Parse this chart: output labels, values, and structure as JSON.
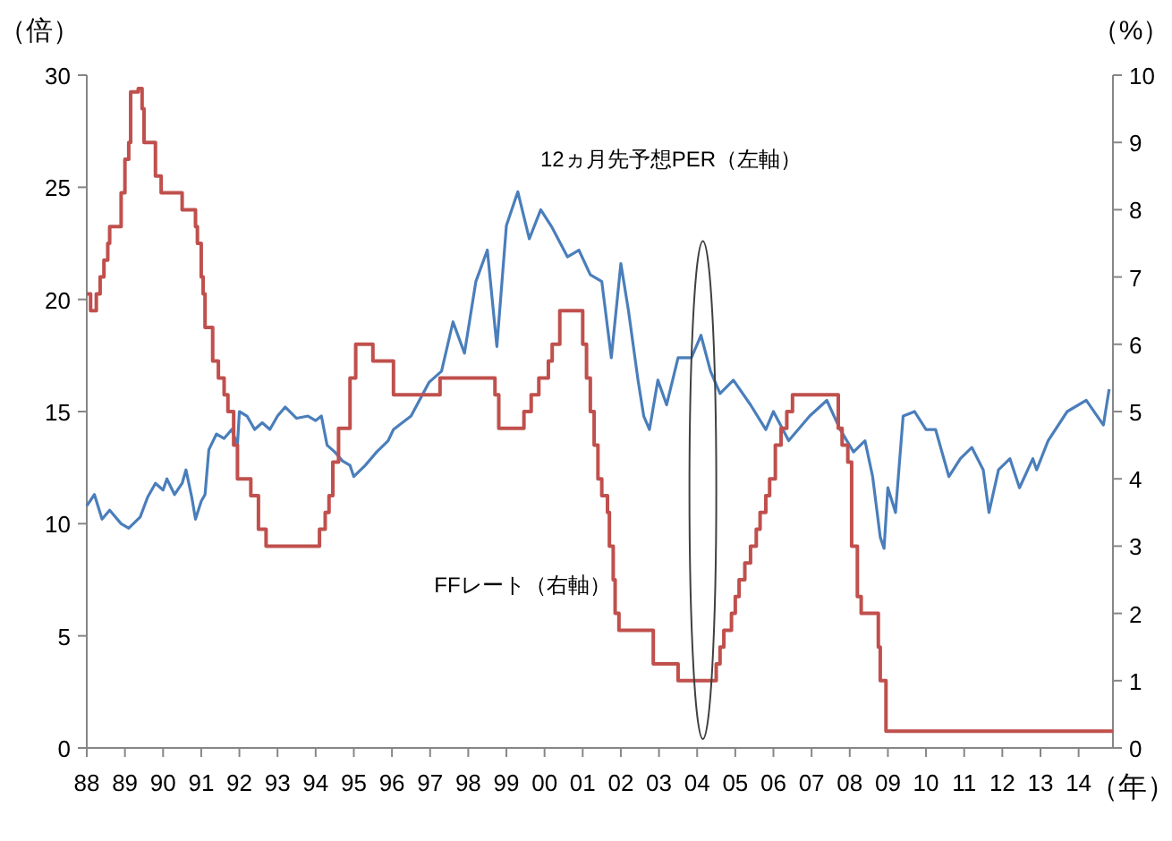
{
  "chart_data": {
    "type": "line",
    "ylabel": "（倍）",
    "y2label": "（%）",
    "xlabel": "（年）",
    "xlim": [
      1988,
      2014.9
    ],
    "xticks": [
      {
        "value": 1988,
        "label": "88"
      },
      {
        "value": 1989,
        "label": "89"
      },
      {
        "value": 1990,
        "label": "90"
      },
      {
        "value": 1991,
        "label": "91"
      },
      {
        "value": 1992,
        "label": "92"
      },
      {
        "value": 1993,
        "label": "93"
      },
      {
        "value": 1994,
        "label": "94"
      },
      {
        "value": 1995,
        "label": "95"
      },
      {
        "value": 1996,
        "label": "96"
      },
      {
        "value": 1997,
        "label": "97"
      },
      {
        "value": 1998,
        "label": "98"
      },
      {
        "value": 1999,
        "label": "99"
      },
      {
        "value": 2000,
        "label": "00"
      },
      {
        "value": 2001,
        "label": "01"
      },
      {
        "value": 2002,
        "label": "02"
      },
      {
        "value": 2003,
        "label": "03"
      },
      {
        "value": 2004,
        "label": "04"
      },
      {
        "value": 2005,
        "label": "05"
      },
      {
        "value": 2006,
        "label": "06"
      },
      {
        "value": 2007,
        "label": "07"
      },
      {
        "value": 2008,
        "label": "08"
      },
      {
        "value": 2009,
        "label": "09"
      },
      {
        "value": 2010,
        "label": "10"
      },
      {
        "value": 2011,
        "label": "11"
      },
      {
        "value": 2012,
        "label": "12"
      },
      {
        "value": 2013,
        "label": "13"
      },
      {
        "value": 2014,
        "label": "14"
      }
    ],
    "ylim": [
      0,
      30
    ],
    "yticks": [
      0,
      5,
      10,
      15,
      20,
      25,
      30
    ],
    "y2lim": [
      0,
      10
    ],
    "y2ticks": [
      0,
      1,
      2,
      3,
      4,
      5,
      6,
      7,
      8,
      9,
      10
    ],
    "grid": false,
    "series": [
      {
        "name": "12ヵ月先予想PER（左軸）",
        "color": "#4a7ebb",
        "x": [
          1988.0,
          1988.2,
          1988.4,
          1988.6,
          1988.9,
          1989.1,
          1989.4,
          1989.6,
          1989.8,
          1990.0,
          1990.1,
          1990.3,
          1990.5,
          1990.6,
          1990.75,
          1990.85,
          1991.0,
          1991.1,
          1991.2,
          1991.4,
          1991.6,
          1991.8,
          1991.95,
          1992.0,
          1992.2,
          1992.4,
          1992.6,
          1992.8,
          1993.0,
          1993.2,
          1993.5,
          1993.8,
          1994.0,
          1994.15,
          1994.3,
          1994.5,
          1994.7,
          1994.9,
          1995.0,
          1995.3,
          1995.6,
          1995.9,
          1996.04,
          1996.5,
          1996.97,
          1997.3,
          1997.6,
          1997.9,
          1998.2,
          1998.5,
          1998.75,
          1999.0,
          1999.3,
          1999.6,
          1999.9,
          2000.2,
          2000.6,
          2000.9,
          2001.2,
          2001.5,
          2001.75,
          2002.0,
          2002.2,
          2002.45,
          2002.6,
          2002.75,
          2002.97,
          2003.2,
          2003.5,
          2003.85,
          2004.1,
          2004.35,
          2004.6,
          2004.95,
          2005.4,
          2005.8,
          2006.0,
          2006.4,
          2006.95,
          2007.4,
          2007.75,
          2008.1,
          2008.4,
          2008.6,
          2008.8,
          2008.9,
          2009.0,
          2009.2,
          2009.4,
          2009.7,
          2010.0,
          2010.25,
          2010.6,
          2010.9,
          2011.2,
          2011.5,
          2011.65,
          2011.9,
          2012.2,
          2012.45,
          2012.8,
          2012.9,
          2013.2,
          2013.7,
          2014.2,
          2014.65,
          2014.8
        ],
        "values": [
          10.8,
          11.3,
          10.2,
          10.6,
          10.0,
          9.8,
          10.3,
          11.2,
          11.8,
          11.5,
          12.0,
          11.3,
          11.8,
          12.4,
          11.2,
          10.2,
          11.0,
          11.3,
          13.3,
          14.0,
          13.8,
          14.2,
          13.5,
          15.0,
          14.8,
          14.2,
          14.5,
          14.2,
          14.8,
          15.2,
          14.7,
          14.8,
          14.6,
          14.8,
          13.5,
          13.2,
          12.8,
          12.6,
          12.1,
          12.6,
          13.2,
          13.7,
          14.2,
          14.8,
          16.3,
          16.8,
          19.0,
          17.6,
          20.8,
          22.2,
          17.9,
          23.3,
          24.8,
          22.7,
          24.0,
          23.2,
          21.9,
          22.2,
          21.1,
          20.8,
          17.4,
          21.6,
          19.5,
          16.4,
          14.8,
          14.2,
          16.4,
          15.3,
          17.4,
          17.4,
          18.4,
          16.8,
          15.8,
          16.4,
          15.3,
          14.2,
          15.0,
          13.7,
          14.8,
          15.5,
          14.2,
          13.2,
          13.7,
          12.1,
          9.4,
          8.9,
          11.6,
          10.5,
          14.8,
          15.0,
          14.2,
          14.2,
          12.1,
          12.9,
          13.4,
          12.4,
          10.5,
          12.4,
          12.9,
          11.6,
          12.9,
          12.4,
          13.7,
          15.0,
          15.5,
          14.4,
          16.0
        ]
      },
      {
        "name": "FFレート（右軸）",
        "type": "step",
        "axis": "y2",
        "color": "#c0504d",
        "x": [
          1988.0,
          1988.1,
          1988.25,
          1988.35,
          1988.45,
          1988.55,
          1988.6,
          1988.9,
          1989.0,
          1989.1,
          1989.15,
          1989.35,
          1989.45,
          1989.5,
          1989.8,
          1989.95,
          1990.5,
          1990.85,
          1990.9,
          1991.0,
          1991.05,
          1991.1,
          1991.3,
          1991.45,
          1991.6,
          1991.7,
          1991.85,
          1991.95,
          1992.3,
          1992.5,
          1992.7,
          1994.1,
          1994.25,
          1994.35,
          1994.45,
          1994.6,
          1994.9,
          1995.05,
          1995.5,
          1996.04,
          1997.26,
          1998.7,
          1998.8,
          1999.46,
          1999.65,
          1999.85,
          2000.1,
          2000.2,
          2000.4,
          2001.0,
          2001.1,
          2001.2,
          2001.3,
          2001.4,
          2001.5,
          2001.65,
          2001.7,
          2001.8,
          2001.85,
          2001.95,
          2002.85,
          2003.5,
          2004.5,
          2004.6,
          2004.7,
          2004.9,
          2005.0,
          2005.1,
          2005.25,
          2005.4,
          2005.55,
          2005.65,
          2005.8,
          2005.9,
          2006.05,
          2006.2,
          2006.35,
          2006.5,
          2007.7,
          2007.8,
          2007.95,
          2008.05,
          2008.2,
          2008.3,
          2008.75,
          2008.8,
          2008.95,
          2014.9
        ],
        "values": [
          6.75,
          6.5,
          6.75,
          7.0,
          7.25,
          7.5,
          7.75,
          8.25,
          8.75,
          9.0,
          9.75,
          9.8,
          9.5,
          9.0,
          8.5,
          8.25,
          8.0,
          7.75,
          7.5,
          7.0,
          6.75,
          6.25,
          5.75,
          5.5,
          5.25,
          5.0,
          4.5,
          4.0,
          3.75,
          3.25,
          3.0,
          3.25,
          3.5,
          3.75,
          4.25,
          4.75,
          5.5,
          6.0,
          5.75,
          5.25,
          5.5,
          5.25,
          4.75,
          5.0,
          5.25,
          5.5,
          5.75,
          6.0,
          6.5,
          6.0,
          5.5,
          5.0,
          4.5,
          4.0,
          3.75,
          3.5,
          3.0,
          2.5,
          2.0,
          1.75,
          1.25,
          1.0,
          1.25,
          1.5,
          1.75,
          2.0,
          2.25,
          2.5,
          2.75,
          3.0,
          3.25,
          3.5,
          3.75,
          4.0,
          4.5,
          4.75,
          5.0,
          5.25,
          4.75,
          4.5,
          4.25,
          3.0,
          2.25,
          2.0,
          1.5,
          1.0,
          0.25,
          0.25
        ]
      }
    ]
  }
}
